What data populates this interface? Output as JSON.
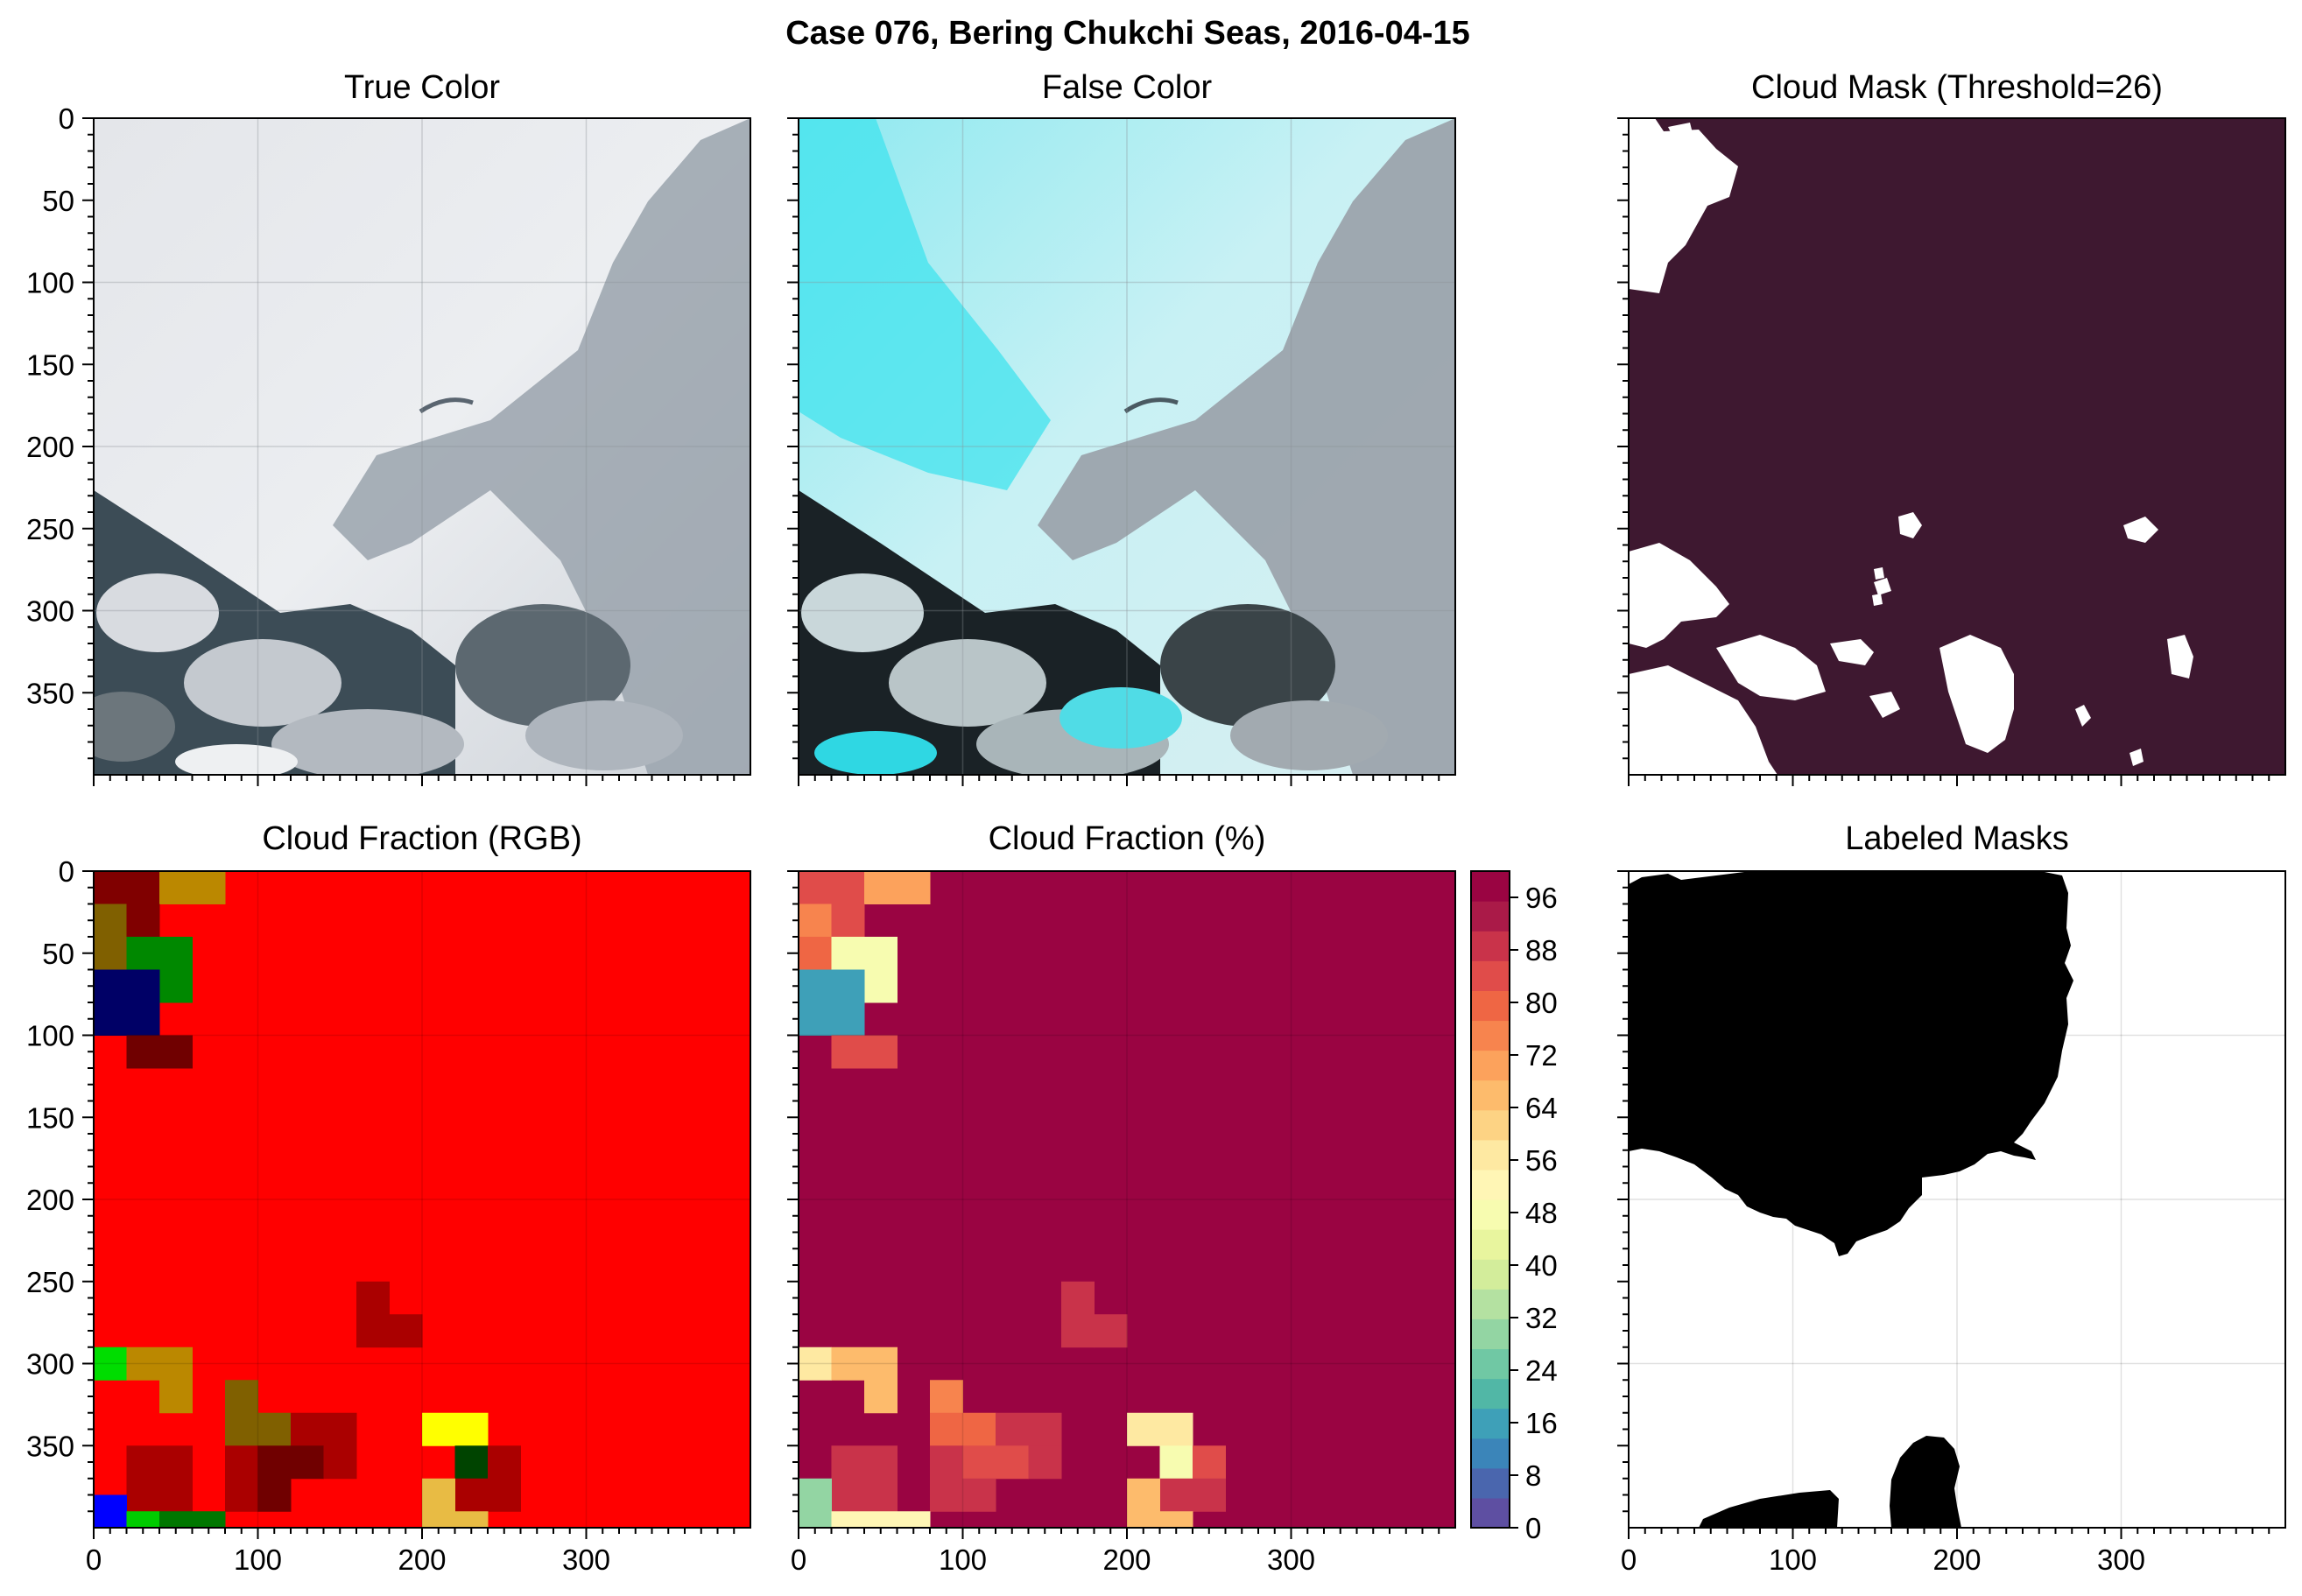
{
  "figure": {
    "title": "Case 076, Bering Chukchi Seas, 2016-04-15"
  },
  "chart_data": [
    {
      "type": "image",
      "title": "True Color",
      "description_colors": [
        "#e9ebee",
        "#c9ced6",
        "#8a96a2",
        "#2a3a44"
      ],
      "xlim": [
        0,
        400
      ],
      "ylim": [
        400,
        0
      ],
      "yticks": [
        0,
        50,
        100,
        150,
        200,
        250,
        300,
        350
      ],
      "grid": true
    },
    {
      "type": "image",
      "title": "False Color",
      "description_colors": [
        "#d8f4f6",
        "#5fe8f0",
        "#8a96a2",
        "#1c2326"
      ],
      "xlim": [
        0,
        400
      ],
      "ylim": [
        400,
        0
      ],
      "grid": true
    },
    {
      "type": "image",
      "title": "Cloud Mask (Threshold=26)",
      "colors": {
        "cloud": "#3e1830",
        "clear": "#ffffff"
      },
      "xlim": [
        0,
        400
      ],
      "ylim": [
        400,
        0
      ]
    },
    {
      "type": "heatmap",
      "title": "Cloud Fraction (RGB)",
      "xlim": [
        0,
        400
      ],
      "ylim": [
        400,
        0
      ],
      "xticks": [
        0,
        100,
        200,
        300
      ],
      "yticks": [
        0,
        50,
        100,
        150,
        200,
        250,
        300,
        350
      ],
      "cell_size": 20,
      "background": "#ff0000",
      "cells": [
        {
          "x": 0,
          "y": 0,
          "w": 40,
          "h": 20,
          "color": "#800000"
        },
        {
          "x": 40,
          "y": 0,
          "w": 40,
          "h": 20,
          "color": "#bb8800"
        },
        {
          "x": 0,
          "y": 20,
          "w": 20,
          "h": 40,
          "color": "#806000"
        },
        {
          "x": 20,
          "y": 20,
          "w": 20,
          "h": 20,
          "color": "#800000"
        },
        {
          "x": 20,
          "y": 40,
          "w": 40,
          "h": 20,
          "color": "#008800"
        },
        {
          "x": 40,
          "y": 60,
          "w": 20,
          "h": 20,
          "color": "#008800"
        },
        {
          "x": 0,
          "y": 60,
          "w": 40,
          "h": 40,
          "color": "#000066"
        },
        {
          "x": 20,
          "y": 100,
          "w": 40,
          "h": 20,
          "color": "#700000"
        },
        {
          "x": 160,
          "y": 250,
          "w": 20,
          "h": 40,
          "color": "#aa0000"
        },
        {
          "x": 180,
          "y": 270,
          "w": 20,
          "h": 20,
          "color": "#aa0000"
        },
        {
          "x": 0,
          "y": 290,
          "w": 20,
          "h": 20,
          "color": "#00dd00"
        },
        {
          "x": 20,
          "y": 290,
          "w": 40,
          "h": 20,
          "color": "#bb8800"
        },
        {
          "x": 40,
          "y": 310,
          "w": 20,
          "h": 20,
          "color": "#bb8800"
        },
        {
          "x": 80,
          "y": 310,
          "w": 20,
          "h": 40,
          "color": "#806000"
        },
        {
          "x": 100,
          "y": 330,
          "w": 20,
          "h": 20,
          "color": "#806000"
        },
        {
          "x": 120,
          "y": 330,
          "w": 40,
          "h": 20,
          "color": "#aa0000"
        },
        {
          "x": 200,
          "y": 330,
          "w": 40,
          "h": 20,
          "color": "#ffff00"
        },
        {
          "x": 20,
          "y": 350,
          "w": 40,
          "h": 40,
          "color": "#aa0000"
        },
        {
          "x": 80,
          "y": 350,
          "w": 20,
          "h": 40,
          "color": "#aa0000"
        },
        {
          "x": 100,
          "y": 350,
          "w": 40,
          "h": 20,
          "color": "#700000"
        },
        {
          "x": 140,
          "y": 350,
          "w": 20,
          "h": 20,
          "color": "#aa0000"
        },
        {
          "x": 220,
          "y": 350,
          "w": 20,
          "h": 20,
          "color": "#004400"
        },
        {
          "x": 240,
          "y": 350,
          "w": 20,
          "h": 40,
          "color": "#aa0000"
        },
        {
          "x": 220,
          "y": 370,
          "w": 20,
          "h": 20,
          "color": "#aa0000"
        },
        {
          "x": 100,
          "y": 370,
          "w": 20,
          "h": 20,
          "color": "#700000"
        },
        {
          "x": 0,
          "y": 380,
          "w": 20,
          "h": 20,
          "color": "#0000ff"
        },
        {
          "x": 20,
          "y": 390,
          "w": 20,
          "h": 10,
          "color": "#00cc00"
        },
        {
          "x": 40,
          "y": 390,
          "w": 40,
          "h": 10,
          "color": "#007700"
        },
        {
          "x": 200,
          "y": 370,
          "w": 20,
          "h": 30,
          "color": "#e8bb44"
        },
        {
          "x": 220,
          "y": 390,
          "w": 20,
          "h": 10,
          "color": "#e8bb44"
        }
      ]
    },
    {
      "type": "heatmap",
      "title": "Cloud Fraction (%)",
      "xlim": [
        0,
        400
      ],
      "ylim": [
        400,
        0
      ],
      "xticks": [
        0,
        100,
        200,
        300
      ],
      "default_value": 100,
      "colorbar": {
        "ticks": [
          0,
          8,
          16,
          24,
          32,
          40,
          48,
          56,
          64,
          72,
          80,
          88,
          96
        ],
        "min": 0,
        "max": 100,
        "step": 4,
        "colors": [
          "#5e4fa2",
          "#4a66ae",
          "#3b85b9",
          "#3ea0b8",
          "#51b7a6",
          "#70c8a4",
          "#93d5a3",
          "#b4e1a1",
          "#d3ed9b",
          "#e8f59e",
          "#f7fcb0",
          "#fff6b5",
          "#fee9a2",
          "#fdd384",
          "#fdbb6c",
          "#fca25c",
          "#f7844e",
          "#ef6644",
          "#e04c4a",
          "#c9334a",
          "#aa1a48",
          "#9a0442"
        ]
      },
      "cells": [
        {
          "x": 0,
          "y": 0,
          "w": 40,
          "h": 20,
          "value": 86
        },
        {
          "x": 40,
          "y": 0,
          "w": 40,
          "h": 20,
          "value": 70
        },
        {
          "x": 0,
          "y": 20,
          "w": 20,
          "h": 20,
          "value": 76
        },
        {
          "x": 20,
          "y": 20,
          "w": 20,
          "h": 20,
          "value": 86
        },
        {
          "x": 0,
          "y": 40,
          "w": 20,
          "h": 20,
          "value": 80
        },
        {
          "x": 20,
          "y": 40,
          "w": 40,
          "h": 40,
          "value": 48
        },
        {
          "x": 0,
          "y": 60,
          "w": 40,
          "h": 40,
          "value": 16
        },
        {
          "x": 20,
          "y": 100,
          "w": 40,
          "h": 20,
          "value": 86
        },
        {
          "x": 160,
          "y": 250,
          "w": 20,
          "h": 40,
          "value": 90
        },
        {
          "x": 180,
          "y": 270,
          "w": 20,
          "h": 20,
          "value": 90
        },
        {
          "x": 0,
          "y": 290,
          "w": 20,
          "h": 20,
          "value": 56
        },
        {
          "x": 20,
          "y": 290,
          "w": 40,
          "h": 20,
          "value": 68
        },
        {
          "x": 40,
          "y": 310,
          "w": 20,
          "h": 20,
          "value": 68
        },
        {
          "x": 80,
          "y": 310,
          "w": 20,
          "h": 20,
          "value": 76
        },
        {
          "x": 80,
          "y": 330,
          "w": 40,
          "h": 20,
          "value": 80
        },
        {
          "x": 120,
          "y": 330,
          "w": 40,
          "h": 20,
          "value": 88
        },
        {
          "x": 200,
          "y": 330,
          "w": 40,
          "h": 20,
          "value": 58
        },
        {
          "x": 20,
          "y": 350,
          "w": 40,
          "h": 40,
          "value": 88
        },
        {
          "x": 80,
          "y": 350,
          "w": 20,
          "h": 40,
          "value": 88
        },
        {
          "x": 100,
          "y": 350,
          "w": 40,
          "h": 20,
          "value": 86
        },
        {
          "x": 140,
          "y": 350,
          "w": 20,
          "h": 20,
          "value": 88
        },
        {
          "x": 220,
          "y": 350,
          "w": 20,
          "h": 20,
          "value": 48
        },
        {
          "x": 240,
          "y": 350,
          "w": 20,
          "h": 20,
          "value": 86
        },
        {
          "x": 220,
          "y": 370,
          "w": 40,
          "h": 20,
          "value": 88
        },
        {
          "x": 100,
          "y": 370,
          "w": 20,
          "h": 20,
          "value": 88
        },
        {
          "x": 0,
          "y": 370,
          "w": 20,
          "h": 30,
          "value": 28
        },
        {
          "x": 20,
          "y": 390,
          "w": 60,
          "h": 10,
          "value": 54
        },
        {
          "x": 200,
          "y": 370,
          "w": 20,
          "h": 30,
          "value": 68
        },
        {
          "x": 220,
          "y": 390,
          "w": 20,
          "h": 10,
          "value": 68
        }
      ]
    },
    {
      "type": "image",
      "title": "Labeled Masks",
      "colors": {
        "label": "#000000",
        "background": "#ffffff"
      },
      "xlim": [
        0,
        400
      ],
      "ylim": [
        400,
        0
      ],
      "xticks": [
        0,
        100,
        200,
        300
      ],
      "grid": true
    }
  ]
}
